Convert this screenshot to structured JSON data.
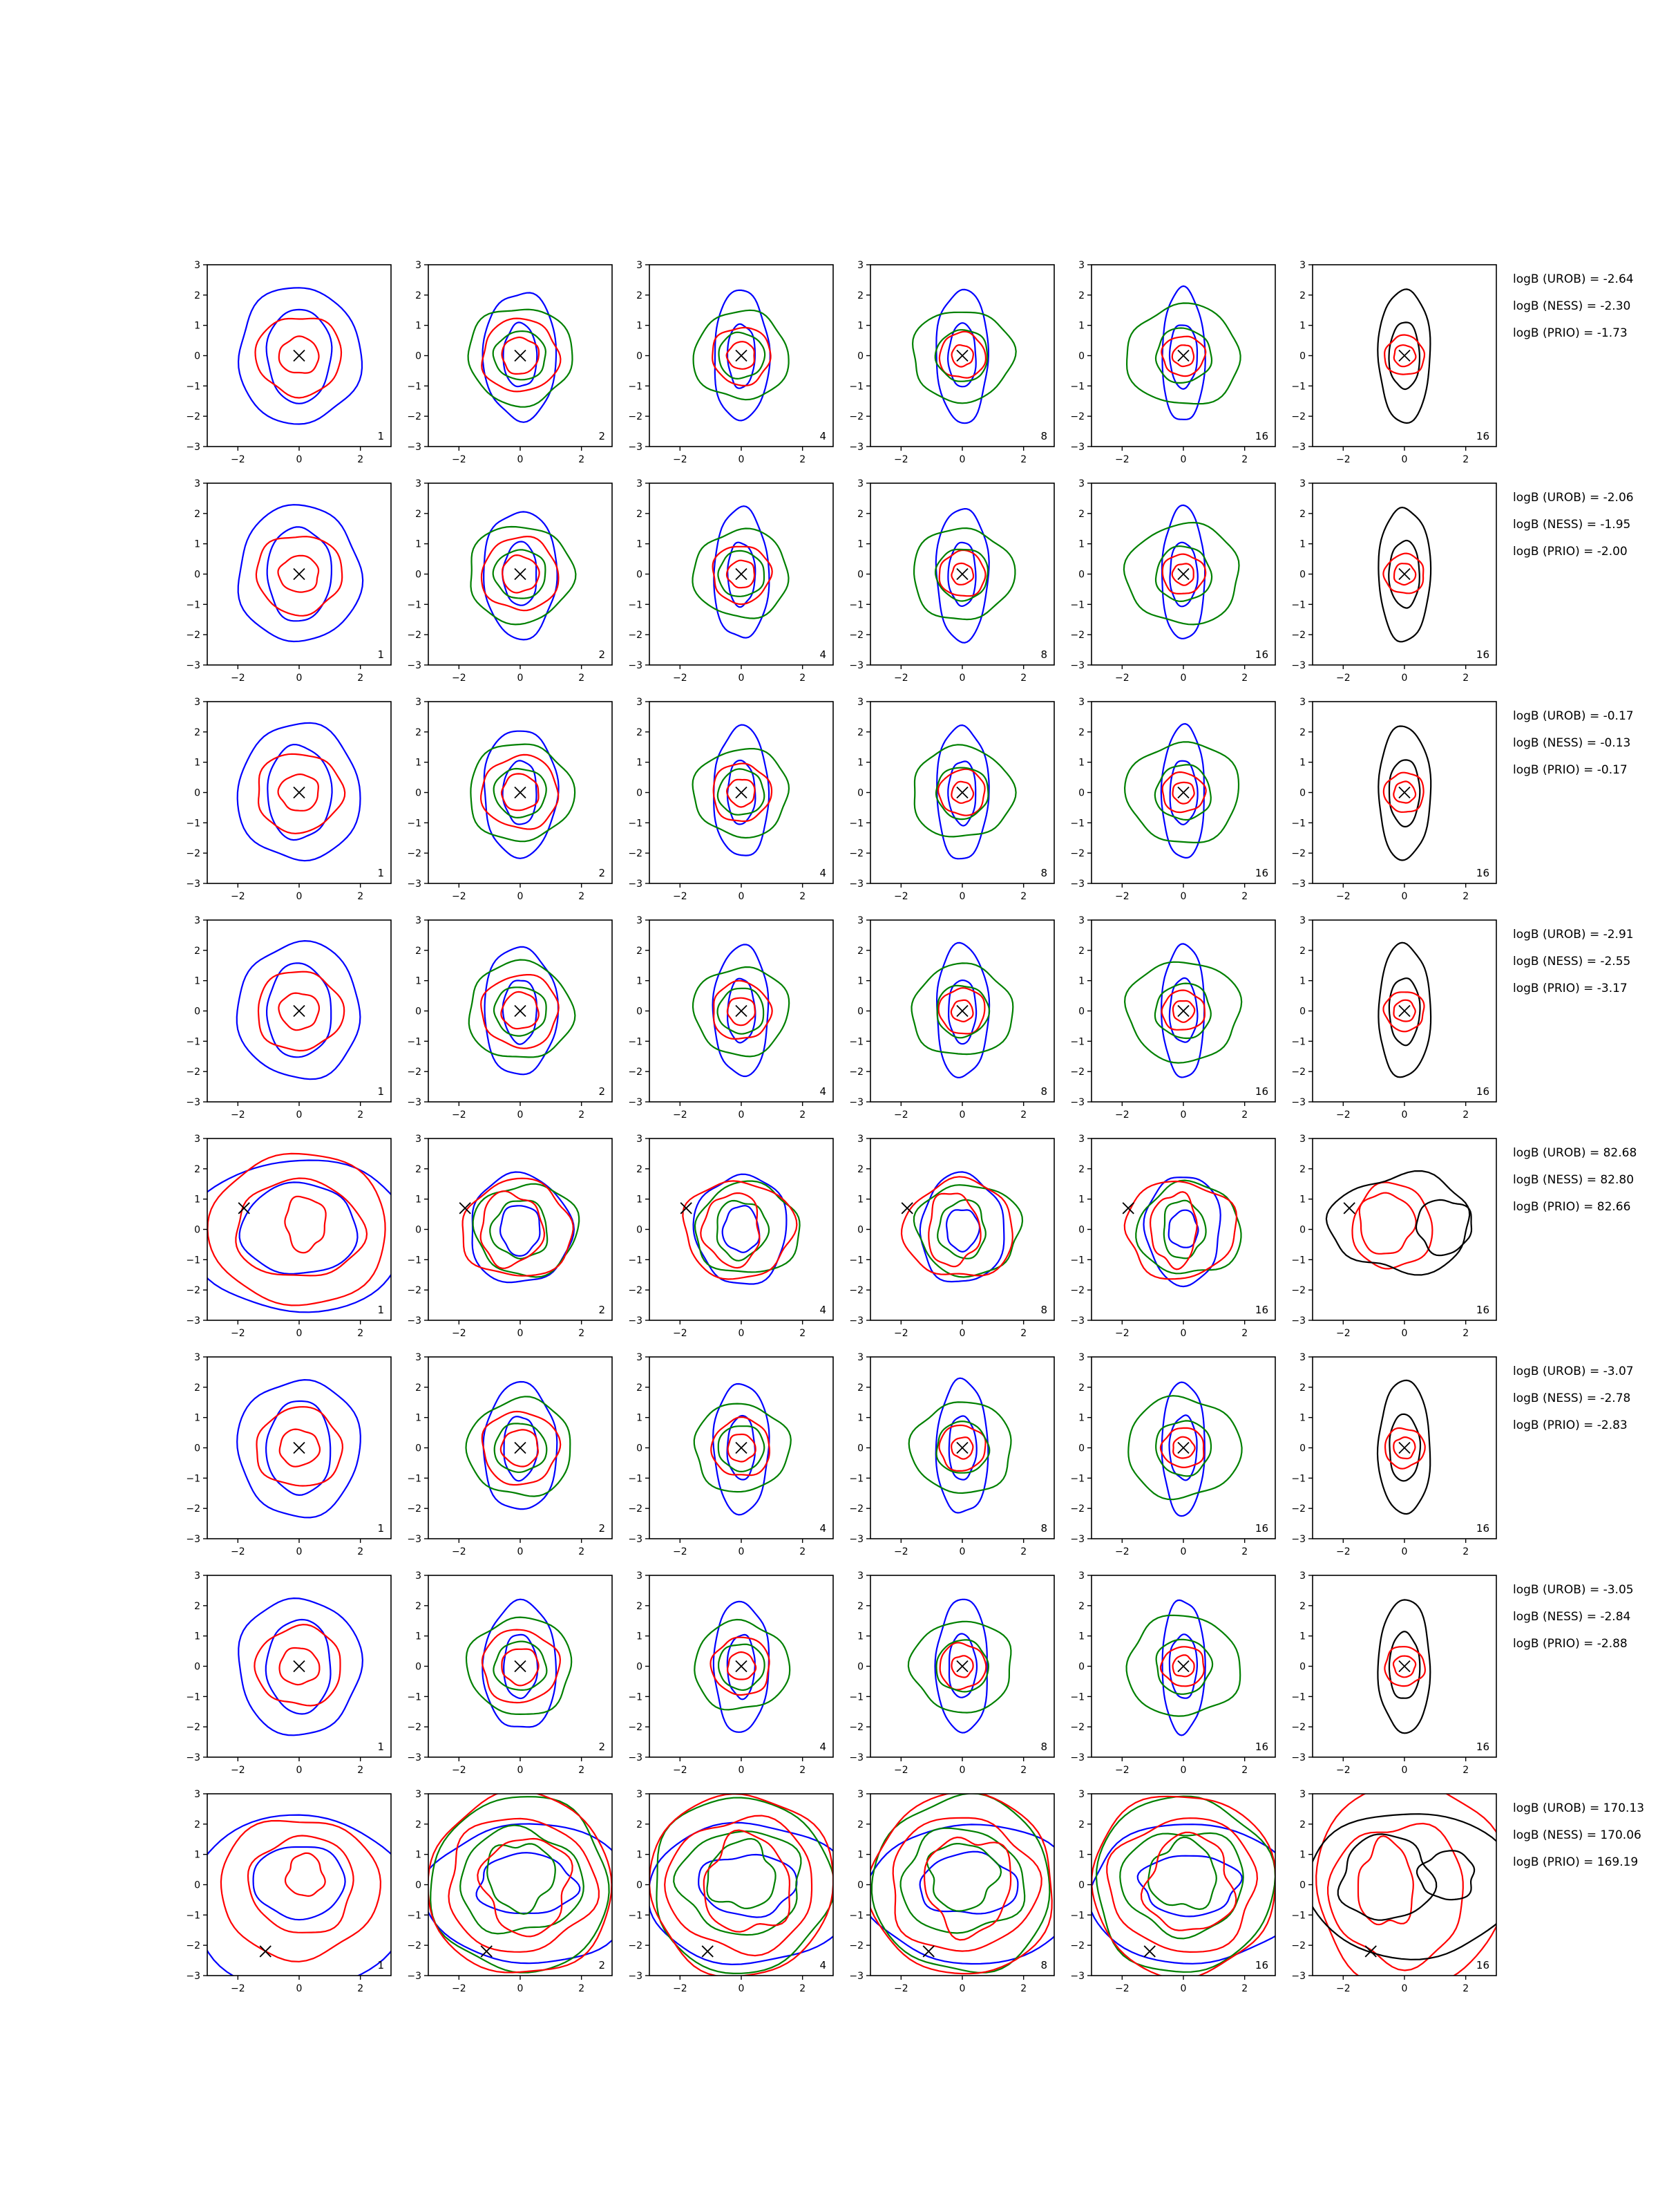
{
  "figure": {
    "rows": 8,
    "cols": 6,
    "xlim": [
      -3,
      3
    ],
    "ylim": [
      -3,
      3
    ],
    "xticks": [
      "−2",
      "0",
      "2"
    ],
    "yticks": [
      "3",
      "2",
      "1",
      "0",
      "−1",
      "−2",
      "−3"
    ],
    "colors": {
      "blue": "#0000ff",
      "red": "#ff0000",
      "green": "#008000",
      "black": "#000000"
    }
  },
  "chart_data": [
    {
      "row": 1,
      "type": "contour",
      "col_labels": [
        "1",
        "2",
        "4",
        "8",
        "16",
        "16"
      ],
      "marker": [
        0,
        0
      ],
      "stats": [
        {
          "label": "logB (UROB) = -2.64"
        },
        {
          "label": "logB (NESS) = -2.30"
        },
        {
          "label": "logB (PRIO) = -1.73"
        }
      ]
    },
    {
      "row": 2,
      "type": "contour",
      "col_labels": [
        "1",
        "2",
        "4",
        "8",
        "16",
        "16"
      ],
      "marker": [
        0,
        0
      ],
      "stats": [
        {
          "label": "logB (UROB) = -2.06"
        },
        {
          "label": "logB (NESS) = -1.95"
        },
        {
          "label": "logB (PRIO) = -2.00"
        }
      ]
    },
    {
      "row": 3,
      "type": "contour",
      "col_labels": [
        "1",
        "2",
        "4",
        "8",
        "16",
        "16"
      ],
      "marker": [
        0,
        0
      ],
      "stats": [
        {
          "label": "logB (UROB) = -0.17"
        },
        {
          "label": "logB (NESS) = -0.13"
        },
        {
          "label": "logB (PRIO) = -0.17"
        }
      ]
    },
    {
      "row": 4,
      "type": "contour",
      "col_labels": [
        "1",
        "2",
        "4",
        "8",
        "16",
        "16"
      ],
      "marker": [
        0,
        0
      ],
      "stats": [
        {
          "label": "logB (UROB) = -2.91"
        },
        {
          "label": "logB (NESS) = -2.55"
        },
        {
          "label": "logB (PRIO) = -3.17"
        }
      ]
    },
    {
      "row": 5,
      "type": "contour",
      "col_labels": [
        "1",
        "2",
        "4",
        "8",
        "16",
        "16"
      ],
      "marker": [
        -1.8,
        0.7
      ],
      "stats": [
        {
          "label": "logB (UROB) = 82.68"
        },
        {
          "label": "logB (NESS) = 82.80"
        },
        {
          "label": "logB (PRIO) = 82.66"
        }
      ]
    },
    {
      "row": 6,
      "type": "contour",
      "col_labels": [
        "1",
        "2",
        "4",
        "8",
        "16",
        "16"
      ],
      "marker": [
        0,
        0
      ],
      "stats": [
        {
          "label": "logB (UROB) = -3.07"
        },
        {
          "label": "logB (NESS) = -2.78"
        },
        {
          "label": "logB (PRIO) = -2.83"
        }
      ]
    },
    {
      "row": 7,
      "type": "contour",
      "col_labels": [
        "1",
        "2",
        "4",
        "8",
        "16",
        "16"
      ],
      "marker": [
        0,
        0
      ],
      "stats": [
        {
          "label": "logB (UROB) = -3.05"
        },
        {
          "label": "logB (NESS) = -2.84"
        },
        {
          "label": "logB (PRIO) = -2.88"
        }
      ]
    },
    {
      "row": 8,
      "type": "contour",
      "col_labels": [
        "1",
        "2",
        "4",
        "8",
        "16",
        "16"
      ],
      "marker": [
        -1.1,
        -2.2
      ],
      "stats": [
        {
          "label": "logB (UROB) = 170.13"
        },
        {
          "label": "logB (NESS) = 170.06"
        },
        {
          "label": "logB (PRIO) = 169.19"
        }
      ]
    }
  ]
}
